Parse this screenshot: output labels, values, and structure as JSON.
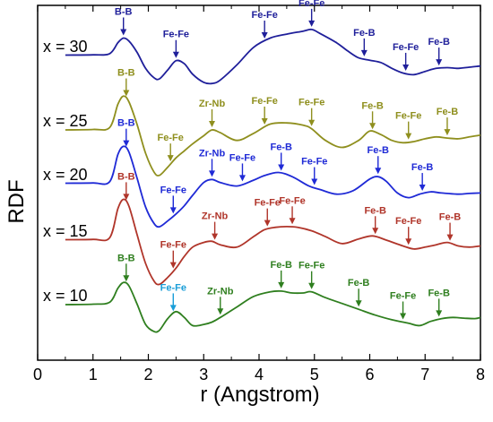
{
  "chart_data": {
    "type": "line",
    "xlabel": "r (Angstrom)",
    "ylabel": "RDF",
    "xlim": [
      0,
      8
    ],
    "xticks": [
      0,
      1,
      2,
      3,
      4,
      5,
      6,
      7,
      8
    ],
    "y_ticks_shown": false,
    "grid": false,
    "series": [
      {
        "name": "x = 30",
        "color": "#1f1f9a",
        "x": [
          0.5,
          1.0,
          1.3,
          1.45,
          1.55,
          1.65,
          1.8,
          1.95,
          2.1,
          2.2,
          2.35,
          2.5,
          2.65,
          2.8,
          3.0,
          3.15,
          3.3,
          3.6,
          3.9,
          4.2,
          4.5,
          4.8,
          4.95,
          5.1,
          5.4,
          5.6,
          5.8,
          6.0,
          6.2,
          6.4,
          6.6,
          6.8,
          7.0,
          7.2,
          7.4,
          7.6,
          7.8,
          8.0
        ],
        "y": [
          0.02,
          0.03,
          0.08,
          0.55,
          0.75,
          0.62,
          0.12,
          -0.55,
          -0.95,
          -1.0,
          -0.62,
          -0.22,
          -0.35,
          -0.8,
          -1.15,
          -1.2,
          -1.05,
          -0.4,
          0.35,
          0.75,
          0.92,
          1.05,
          1.12,
          0.95,
          0.55,
          0.2,
          -0.1,
          -0.2,
          -0.3,
          -0.55,
          -0.75,
          -0.82,
          -0.68,
          -0.55,
          -0.52,
          -0.55,
          -0.5,
          -0.45
        ]
      },
      {
        "name": "x = 25",
        "color": "#8f8f1e",
        "x": [
          0.5,
          1.0,
          1.3,
          1.45,
          1.55,
          1.65,
          1.8,
          1.95,
          2.1,
          2.2,
          2.35,
          2.5,
          2.65,
          2.8,
          3.0,
          3.15,
          3.3,
          3.6,
          3.9,
          4.2,
          4.5,
          4.8,
          4.95,
          5.2,
          5.5,
          5.8,
          6.0,
          6.2,
          6.4,
          6.6,
          6.8,
          7.0,
          7.2,
          7.4,
          7.6,
          7.8,
          8.0
        ],
        "y": [
          0.0,
          0.02,
          0.1,
          1.1,
          1.45,
          1.2,
          0.2,
          -1.0,
          -1.8,
          -1.95,
          -1.6,
          -1.2,
          -0.9,
          -0.6,
          -0.25,
          0.0,
          -0.12,
          -0.45,
          -0.15,
          0.25,
          0.3,
          0.2,
          0.05,
          -0.45,
          -0.75,
          -0.45,
          -0.05,
          -0.2,
          -0.45,
          -0.55,
          -0.5,
          -0.38,
          -0.3,
          -0.35,
          -0.38,
          -0.3,
          -0.22
        ]
      },
      {
        "name": "x = 20",
        "color": "#1f2ad6",
        "x": [
          0.5,
          1.0,
          1.3,
          1.45,
          1.55,
          1.65,
          1.8,
          1.95,
          2.1,
          2.2,
          2.35,
          2.5,
          2.65,
          2.8,
          3.0,
          3.15,
          3.3,
          3.6,
          3.9,
          4.1,
          4.35,
          4.6,
          4.9,
          5.1,
          5.4,
          5.7,
          6.0,
          6.15,
          6.3,
          6.5,
          6.7,
          6.9,
          7.1,
          7.3,
          7.6,
          7.8,
          8.0
        ],
        "y": [
          0.02,
          0.03,
          0.08,
          1.25,
          1.6,
          1.35,
          0.2,
          -1.0,
          -1.7,
          -1.85,
          -1.6,
          -1.3,
          -0.95,
          -0.5,
          0.05,
          0.18,
          0.05,
          -0.1,
          0.15,
          0.35,
          0.48,
          0.3,
          -0.1,
          -0.25,
          -0.45,
          -0.3,
          0.2,
          0.3,
          0.1,
          -0.4,
          -0.6,
          -0.45,
          -0.35,
          -0.4,
          -0.45,
          -0.42,
          -0.4
        ]
      },
      {
        "name": "x = 15",
        "color": "#b0352a",
        "x": [
          0.5,
          1.0,
          1.3,
          1.45,
          1.55,
          1.65,
          1.8,
          1.95,
          2.1,
          2.2,
          2.35,
          2.5,
          2.65,
          2.8,
          3.0,
          3.15,
          3.3,
          3.6,
          3.9,
          4.1,
          4.3,
          4.5,
          4.7,
          4.95,
          5.2,
          5.5,
          5.8,
          6.05,
          6.3,
          6.6,
          6.8,
          7.0,
          7.2,
          7.4,
          7.6,
          7.8,
          8.0
        ],
        "y": [
          0.02,
          0.03,
          0.1,
          1.35,
          1.75,
          1.45,
          0.2,
          -1.0,
          -1.75,
          -1.9,
          -1.6,
          -1.2,
          -0.7,
          -0.3,
          -0.1,
          -0.05,
          -0.2,
          -0.3,
          0.15,
          0.45,
          0.55,
          0.58,
          0.55,
          0.4,
          0.15,
          -0.15,
          0.05,
          0.18,
          0.0,
          -0.25,
          -0.38,
          -0.3,
          -0.2,
          -0.1,
          -0.25,
          -0.3,
          -0.25
        ]
      },
      {
        "name": "x = 10",
        "color": "#2f7f1f",
        "x": [
          0.5,
          1.0,
          1.3,
          1.45,
          1.55,
          1.65,
          1.8,
          1.95,
          2.1,
          2.2,
          2.35,
          2.5,
          2.65,
          2.8,
          3.0,
          3.15,
          3.3,
          3.6,
          3.9,
          4.2,
          4.4,
          4.6,
          4.8,
          4.95,
          5.2,
          5.5,
          5.8,
          6.1,
          6.4,
          6.7,
          6.9,
          7.1,
          7.3,
          7.5,
          7.7,
          7.9,
          8.0
        ],
        "y": [
          0.0,
          0.02,
          0.1,
          0.7,
          0.95,
          0.8,
          0.0,
          -0.85,
          -1.15,
          -1.1,
          -0.6,
          -0.3,
          -0.55,
          -0.9,
          -0.85,
          -0.75,
          -0.55,
          -0.1,
          0.35,
          0.55,
          0.58,
          0.5,
          0.5,
          0.55,
          0.3,
          0.05,
          -0.2,
          -0.45,
          -0.65,
          -0.8,
          -0.9,
          -0.72,
          -0.6,
          -0.55,
          -0.58,
          -0.6,
          -0.55
        ]
      }
    ],
    "annotations": [
      {
        "series": 0,
        "text": "B-B",
        "x": 1.55,
        "color": "#1f1f9a"
      },
      {
        "series": 0,
        "text": "Fe-Fe",
        "x": 2.5,
        "color": "#1f1f9a"
      },
      {
        "series": 0,
        "text": "Fe-Fe",
        "x": 4.1,
        "color": "#1f1f9a"
      },
      {
        "series": 0,
        "text": "Fe-Fe",
        "x": 4.95,
        "color": "#1f1f9a"
      },
      {
        "series": 0,
        "text": "Fe-B",
        "x": 5.9,
        "color": "#1f1f9a"
      },
      {
        "series": 0,
        "text": "Fe-Fe",
        "x": 6.65,
        "color": "#1f1f9a"
      },
      {
        "series": 0,
        "text": "Fe-B",
        "x": 7.25,
        "color": "#1f1f9a"
      },
      {
        "series": 1,
        "text": "B-B",
        "x": 1.6,
        "color": "#8f8f1e"
      },
      {
        "series": 1,
        "text": "Fe-Fe",
        "x": 2.4,
        "color": "#8f8f1e"
      },
      {
        "series": 1,
        "text": "Zr-Nb",
        "x": 3.15,
        "color": "#8f8f1e"
      },
      {
        "series": 1,
        "text": "Fe-Fe",
        "x": 4.1,
        "color": "#8f8f1e"
      },
      {
        "series": 1,
        "text": "Fe-Fe",
        "x": 4.95,
        "color": "#8f8f1e"
      },
      {
        "series": 1,
        "text": "Fe-B",
        "x": 6.05,
        "color": "#8f8f1e"
      },
      {
        "series": 1,
        "text": "Fe-Fe",
        "x": 6.7,
        "color": "#8f8f1e"
      },
      {
        "series": 1,
        "text": "Fe-B",
        "x": 7.4,
        "color": "#8f8f1e"
      },
      {
        "series": 2,
        "text": "B-B",
        "x": 1.6,
        "color": "#1f2ad6"
      },
      {
        "series": 2,
        "text": "Fe-Fe",
        "x": 2.45,
        "color": "#1f2ad6"
      },
      {
        "series": 2,
        "text": "Zr-Nb",
        "x": 3.15,
        "color": "#1f2ad6"
      },
      {
        "series": 2,
        "text": "Fe-Fe",
        "x": 3.7,
        "color": "#1f2ad6"
      },
      {
        "series": 2,
        "text": "Fe-B",
        "x": 4.4,
        "color": "#1f2ad6"
      },
      {
        "series": 2,
        "text": "Fe-Fe",
        "x": 5.0,
        "color": "#1f2ad6"
      },
      {
        "series": 2,
        "text": "Fe-B",
        "x": 6.15,
        "color": "#1f2ad6"
      },
      {
        "series": 2,
        "text": "Fe-B",
        "x": 6.95,
        "color": "#1f2ad6"
      },
      {
        "series": 3,
        "text": "B-B",
        "x": 1.6,
        "color": "#b0352a"
      },
      {
        "series": 3,
        "text": "Fe-Fe",
        "x": 2.45,
        "color": "#b0352a"
      },
      {
        "series": 3,
        "text": "Zr-Nb",
        "x": 3.2,
        "color": "#b0352a"
      },
      {
        "series": 3,
        "text": "Fe-Fe",
        "x": 4.15,
        "color": "#b0352a"
      },
      {
        "series": 3,
        "text": "Fe-Fe",
        "x": 4.6,
        "color": "#b0352a"
      },
      {
        "series": 3,
        "text": "Fe-B",
        "x": 6.1,
        "color": "#b0352a"
      },
      {
        "series": 3,
        "text": "Fe-Fe",
        "x": 6.7,
        "color": "#b0352a"
      },
      {
        "series": 3,
        "text": "Fe-B",
        "x": 7.45,
        "color": "#b0352a"
      },
      {
        "series": 4,
        "text": "B-B",
        "x": 1.6,
        "color": "#2f7f1f"
      },
      {
        "series": 4,
        "text": "Fe-Fe",
        "x": 2.45,
        "color": "#1a9ed8"
      },
      {
        "series": 4,
        "text": "Zr-Nb",
        "x": 3.3,
        "color": "#2f7f1f"
      },
      {
        "series": 4,
        "text": "Fe-B",
        "x": 4.4,
        "color": "#2f7f1f"
      },
      {
        "series": 4,
        "text": "Fe-Fe",
        "x": 4.95,
        "color": "#2f7f1f"
      },
      {
        "series": 4,
        "text": "Fe-B",
        "x": 5.8,
        "color": "#2f7f1f"
      },
      {
        "series": 4,
        "text": "Fe-Fe",
        "x": 6.6,
        "color": "#2f7f1f"
      },
      {
        "series": 4,
        "text": "Fe-B",
        "x": 7.25,
        "color": "#2f7f1f"
      }
    ]
  }
}
